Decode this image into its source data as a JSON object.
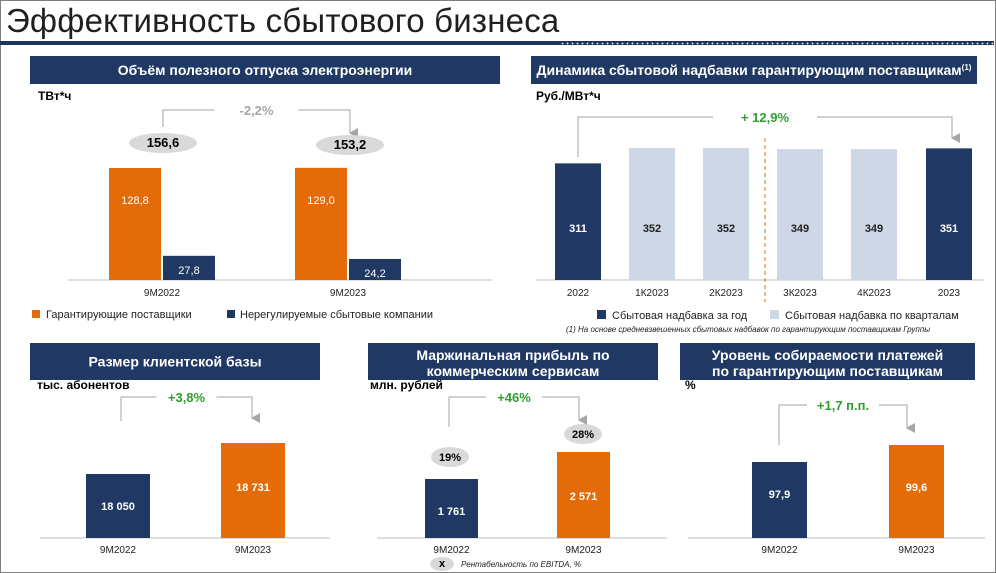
{
  "page_title": "Эффективность сбытового бизнеса",
  "colors": {
    "navy": "#1f3864",
    "orange": "#e36c09",
    "light": "#cdd7e6",
    "green": "#2e9e2e"
  },
  "chart_data": [
    {
      "id": "volume",
      "type": "bar",
      "title": "Объём полезного отпуска электроэнергии",
      "unit": "ТВт*ч",
      "categories": [
        "9М2022",
        "9М2023"
      ],
      "series": [
        {
          "name": "Гарантирующие поставщики",
          "values": [
            128.8,
            129.0
          ],
          "labels": [
            "128,8",
            "129,0"
          ]
        },
        {
          "name": "Нерегулируемые сбытовые компании",
          "values": [
            27.8,
            24.2
          ],
          "labels": [
            "27,8",
            "24,2"
          ]
        }
      ],
      "totals": [
        "156,6",
        "153,2"
      ],
      "change": "-2,2%",
      "ylim": [
        0,
        140
      ]
    },
    {
      "id": "markup",
      "type": "bar",
      "title": "Динамика сбытовой надбавки гарантирующим поставщикам",
      "title_sup": "(1)",
      "unit": "Руб./МВт*ч",
      "categories": [
        "2022",
        "1К2023",
        "2К2023",
        "3К2023",
        "4К2023",
        "2023"
      ],
      "values": [
        311,
        352,
        352,
        349,
        349,
        351
      ],
      "labels": [
        "311",
        "352",
        "352",
        "349",
        "349",
        "351"
      ],
      "kinds": [
        "year",
        "quarter",
        "quarter",
        "quarter",
        "quarter",
        "year"
      ],
      "change": "+ 12,9%",
      "legend": [
        "Сбытовая надбавка за год",
        "Сбытовая надбавка по кварталам"
      ],
      "footnote": "(1) На основе средневзвешенных сбытовых надбавок по гарантирующим поставщикам Группы",
      "ylim": [
        0,
        360
      ]
    },
    {
      "id": "clients",
      "type": "bar",
      "title": "Размер клиентской базы",
      "unit": "тыс. абонентов",
      "categories": [
        "9М2022",
        "9М2023"
      ],
      "values": [
        18050,
        18731
      ],
      "labels": [
        "18 050",
        "18 731"
      ],
      "change": "+3,8%"
    },
    {
      "id": "margin",
      "type": "bar",
      "title": [
        "Маржинальная прибыль по",
        "коммерческим сервисам"
      ],
      "unit": "млн. рублей",
      "categories": [
        "9М2022",
        "9М2023"
      ],
      "values": [
        1761,
        2571
      ],
      "labels": [
        "1 761",
        "2 571"
      ],
      "ebitda_margin": [
        "19%",
        "28%"
      ],
      "change": "+46%",
      "legend": "Рентабельность по EBITDA, %",
      "legend_marker": "x"
    },
    {
      "id": "collection",
      "type": "bar",
      "title": [
        "Уровень собираемости платежей",
        "по гарантирующим поставщикам"
      ],
      "unit": "%",
      "categories": [
        "9М2022",
        "9М2023"
      ],
      "values": [
        97.9,
        99.6
      ],
      "labels": [
        "97,9",
        "99,6"
      ],
      "change": "+1,7 п.п."
    }
  ]
}
